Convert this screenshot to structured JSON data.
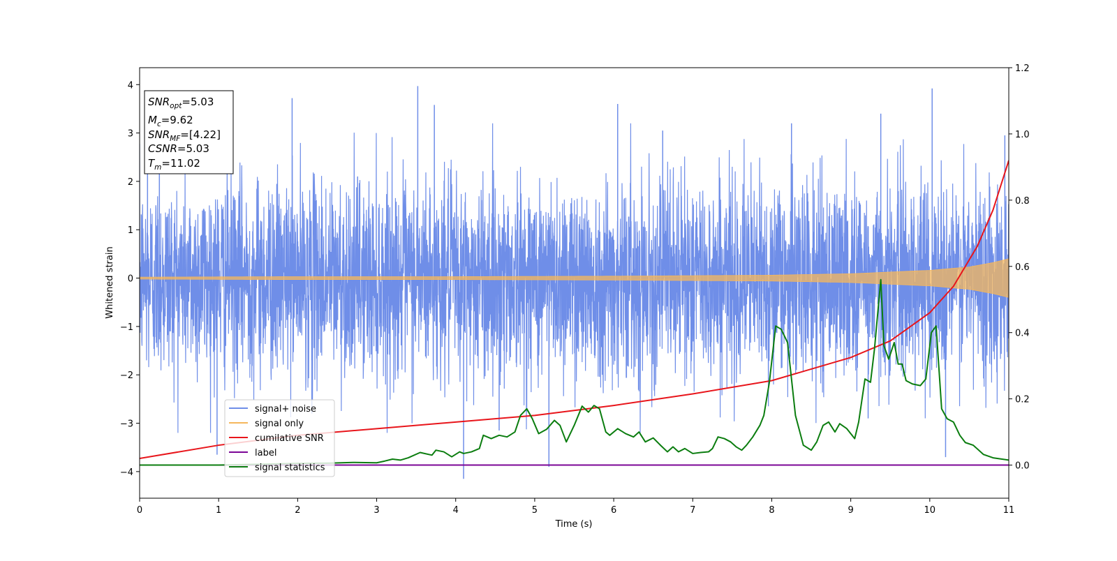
{
  "chart_data": {
    "type": "line",
    "xlabel": "Time (s)",
    "ylabel": "Whitened strain",
    "xlim": [
      0,
      11
    ],
    "ylim": [
      -4.55,
      4.35
    ],
    "y2lim": [
      -0.1,
      1.2
    ],
    "xticks": [
      "0",
      "1",
      "2",
      "3",
      "4",
      "5",
      "6",
      "7",
      "8",
      "9",
      "10",
      "11"
    ],
    "yticks": [
      "4",
      "3",
      "2",
      "1",
      "0",
      "−1",
      "−2",
      "−3",
      "−4"
    ],
    "y2ticks": [
      "1.2",
      "1.0",
      "0.8",
      "0.6",
      "0.4",
      "0.2",
      "0.0"
    ],
    "annotations": {
      "snr_opt": {
        "sym": "SNR",
        "sub": "opt",
        "value": "=5.03"
      },
      "mc": {
        "sym": "M",
        "sub": "c",
        "value": "=9.62"
      },
      "snr_mf": {
        "sym": "SNR",
        "sub": "MF",
        "value": "=[4.22]"
      },
      "csnr": {
        "sym": "CSNR",
        "value": "=5.03"
      },
      "tm": {
        "sym": "T",
        "sub": "m",
        "value": "=11.02"
      }
    },
    "legend": {
      "placement": "lower-left",
      "entries": [
        "signal+ noise",
        "signal only",
        "cumilative SNR",
        "label",
        "signal statistics"
      ]
    },
    "series": [
      {
        "name": "signal+ noise",
        "color": "#6f8ee8",
        "axis": "left",
        "kind": "noise",
        "sigma": 1.0,
        "peaks": [
          [
            0.1,
            2.4
          ],
          [
            0.25,
            3.1
          ],
          [
            0.98,
            -3.65
          ],
          [
            1.93,
            3.72
          ],
          [
            2.18,
            -2.8
          ],
          [
            3.52,
            3.97
          ],
          [
            3.73,
            3.58
          ],
          [
            4.1,
            -4.15
          ],
          [
            4.55,
            -3.15
          ],
          [
            5.18,
            -3.9
          ],
          [
            6.05,
            3.6
          ],
          [
            6.62,
            3.05
          ],
          [
            8.25,
            3.2
          ],
          [
            9.22,
            -2.9
          ],
          [
            9.38,
            3.4
          ],
          [
            10.03,
            3.92
          ],
          [
            10.2,
            -3.7
          ],
          [
            10.95,
            2.95
          ]
        ]
      },
      {
        "name": "signal only",
        "color": "#f5b75c",
        "axis": "left",
        "amplitude_x": [
          0,
          2,
          4,
          6,
          8,
          9,
          10,
          10.5,
          10.8,
          11
        ],
        "amplitude_y": [
          0.02,
          0.03,
          0.03,
          0.04,
          0.06,
          0.09,
          0.16,
          0.23,
          0.32,
          0.4
        ]
      },
      {
        "name": "cumilative SNR",
        "color": "#e8151b",
        "axis": "right",
        "x": [
          0,
          1,
          2,
          3,
          4,
          5,
          6,
          7,
          8,
          9,
          9.5,
          10,
          10.3,
          10.6,
          10.8,
          11
        ],
        "y": [
          0.02,
          0.06,
          0.09,
          0.11,
          0.13,
          0.15,
          0.18,
          0.215,
          0.255,
          0.325,
          0.375,
          0.46,
          0.54,
          0.66,
          0.77,
          0.92
        ]
      },
      {
        "name": "label",
        "color": "#7b0596",
        "axis": "right",
        "x": [
          0,
          11
        ],
        "y": [
          0,
          0
        ]
      },
      {
        "name": "signal statistics",
        "color": "#0b7d0f",
        "axis": "right",
        "x": [
          0,
          1,
          2,
          2.4,
          2.7,
          3.0,
          3.1,
          3.2,
          3.3,
          3.4,
          3.55,
          3.7,
          3.75,
          3.85,
          3.95,
          4.05,
          4.1,
          4.2,
          4.3,
          4.35,
          4.45,
          4.55,
          4.65,
          4.75,
          4.82,
          4.9,
          4.97,
          5.05,
          5.15,
          5.25,
          5.32,
          5.4,
          5.5,
          5.6,
          5.68,
          5.75,
          5.82,
          5.9,
          5.95,
          6.05,
          6.15,
          6.25,
          6.32,
          6.4,
          6.5,
          6.6,
          6.68,
          6.75,
          6.82,
          6.9,
          7.0,
          7.1,
          7.2,
          7.25,
          7.32,
          7.4,
          7.48,
          7.55,
          7.62,
          7.68,
          7.76,
          7.85,
          7.9,
          7.97,
          8.05,
          8.12,
          8.2,
          8.3,
          8.4,
          8.5,
          8.57,
          8.65,
          8.72,
          8.8,
          8.86,
          8.95,
          9.05,
          9.1,
          9.18,
          9.25,
          9.3,
          9.38,
          9.42,
          9.48,
          9.55,
          9.6,
          9.65,
          9.7,
          9.78,
          9.88,
          9.95,
          10.02,
          10.08,
          10.15,
          10.22,
          10.3,
          10.38,
          10.45,
          10.55,
          10.68,
          10.8,
          11.0
        ],
        "y": [
          0.0,
          0.0,
          0.005,
          0.006,
          0.008,
          0.007,
          0.012,
          0.018,
          0.015,
          0.022,
          0.038,
          0.03,
          0.045,
          0.04,
          0.025,
          0.04,
          0.035,
          0.04,
          0.05,
          0.09,
          0.08,
          0.09,
          0.085,
          0.1,
          0.15,
          0.17,
          0.14,
          0.095,
          0.108,
          0.135,
          0.12,
          0.07,
          0.12,
          0.178,
          0.16,
          0.18,
          0.17,
          0.1,
          0.09,
          0.11,
          0.095,
          0.085,
          0.1,
          0.07,
          0.082,
          0.058,
          0.04,
          0.055,
          0.04,
          0.05,
          0.035,
          0.038,
          0.04,
          0.05,
          0.085,
          0.08,
          0.07,
          0.055,
          0.045,
          0.06,
          0.085,
          0.12,
          0.15,
          0.25,
          0.42,
          0.41,
          0.37,
          0.15,
          0.06,
          0.045,
          0.07,
          0.12,
          0.13,
          0.1,
          0.125,
          0.11,
          0.08,
          0.13,
          0.26,
          0.25,
          0.35,
          0.56,
          0.36,
          0.32,
          0.37,
          0.305,
          0.305,
          0.255,
          0.245,
          0.24,
          0.26,
          0.4,
          0.42,
          0.17,
          0.14,
          0.13,
          0.09,
          0.068,
          0.06,
          0.032,
          0.022,
          0.015
        ]
      }
    ]
  }
}
